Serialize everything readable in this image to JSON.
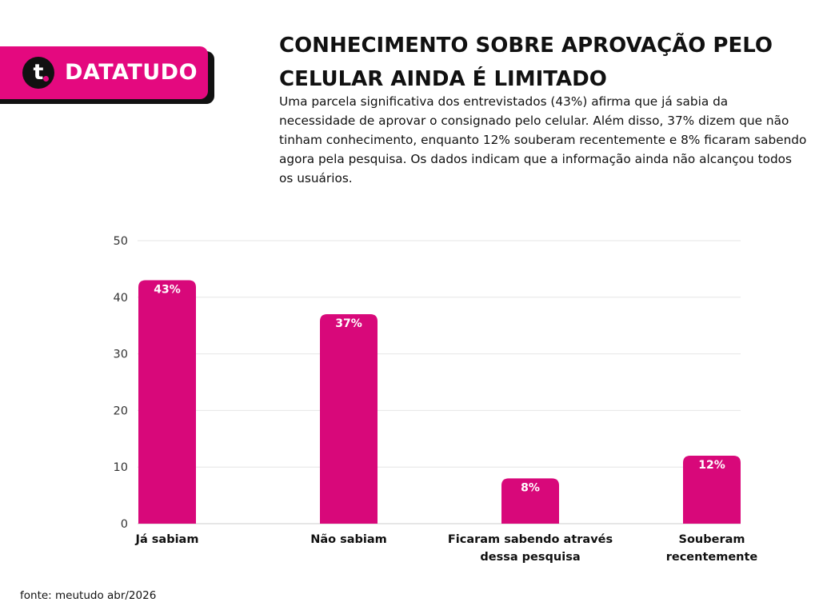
{
  "brand": {
    "logo_letter": "t",
    "name": "DATATUDO"
  },
  "header": {
    "title": "CONHECIMENTO SOBRE APROVAÇÃO PELO CELULAR AINDA É LIMITADO",
    "description": "Uma parcela significativa dos entrevistados (43%) afirma que já sabia da necessidade de aprovar o consignado pelo celular. Além disso, 37% dizem que não tinham conhecimento, enquanto 12% souberam recentemente e 8% ficaram sabendo agora pela pesquisa. Os dados indicam que a informação ainda não alcançou todos os usuários."
  },
  "colors": {
    "accent": "#e4097f",
    "bar": "#d8087a",
    "grid": "#e6e6e6",
    "axis": "#cccccc"
  },
  "chart_data": {
    "type": "bar",
    "categories": [
      [
        "Já sabiam"
      ],
      [
        "Não sabiam"
      ],
      [
        "Ficaram sabendo através",
        "dessa pesquisa"
      ],
      [
        "Souberam",
        "recentemente"
      ]
    ],
    "values": [
      43,
      37,
      8,
      12
    ],
    "data_labels": [
      "43%",
      "37%",
      "8%",
      "12%"
    ],
    "yticks": [
      0,
      10,
      20,
      30,
      40,
      50
    ],
    "ylim": [
      0,
      50
    ],
    "grid": true,
    "legend": false
  },
  "footer": {
    "source": "fonte: meutudo abr/2026"
  }
}
